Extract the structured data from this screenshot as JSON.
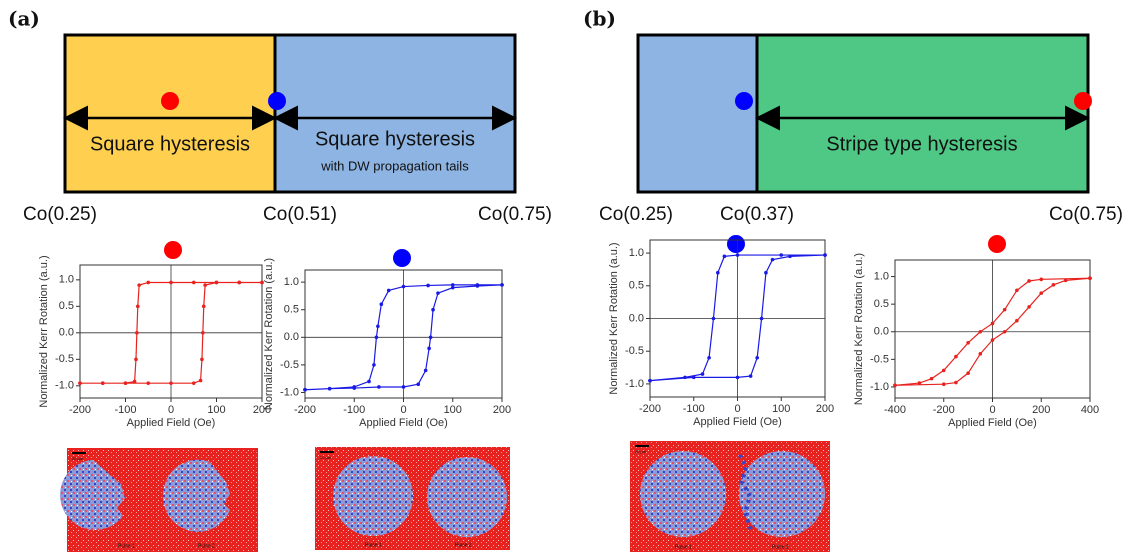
{
  "panels": [
    {
      "label": "(a)",
      "regions": [
        "Square hysteresis",
        "Square hysteresis"
      ],
      "subnote": "with DW propagation tails",
      "compositions": [
        "Co(0.25)",
        "Co(0.51)",
        "Co(0.75)"
      ]
    },
    {
      "label": "(b)",
      "regions": [
        "Stripe type hysteresis"
      ],
      "compositions": [
        "Co(0.25)",
        "Co(0.37)",
        "Co(0.75)"
      ]
    }
  ],
  "images": [
    {
      "scale": "20 µm",
      "pulses": [
        "Pulse 1",
        "Pulse 2"
      ]
    },
    {
      "scale": "20 µm",
      "pulses": [
        "Pulse 1",
        "Pulse 2"
      ]
    },
    {
      "scale": "20 µm",
      "pulses": [
        "Pulse 1",
        "Pulse 2"
      ]
    }
  ],
  "chart_data": [
    {
      "type": "line",
      "x_label": "Applied Field (Oe)",
      "y_label": "Normalized Kerr Rotation (a.u.)",
      "xlim": [
        -200,
        200
      ],
      "ylim": [
        -1.23,
        1.28
      ],
      "xticks": [
        -200,
        -100,
        0,
        100,
        200
      ],
      "yticks": [
        {
          "value": -1,
          "label": "-1.0"
        },
        {
          "value": -0.5,
          "label": "-0.5"
        },
        {
          "value": 0,
          "label": "0.0"
        },
        {
          "value": 0.5,
          "label": "0.5"
        },
        {
          "value": 1,
          "label": "1.0"
        }
      ],
      "x": [
        200,
        150,
        100,
        50,
        0,
        -50,
        -70,
        -73,
        -75,
        -77,
        -80,
        -100,
        -150,
        -200,
        -200,
        -150,
        -100,
        -50,
        0,
        50,
        65,
        68,
        70,
        72,
        75,
        100,
        150,
        200
      ],
      "series": [
        {
          "color": "#e8231f",
          "values": [
            0.95,
            0.95,
            0.95,
            0.95,
            0.95,
            0.95,
            0.9,
            0.5,
            0,
            -0.5,
            -0.92,
            -0.95,
            -0.95,
            -0.95,
            -0.95,
            -0.95,
            -0.95,
            -0.95,
            -0.95,
            -0.95,
            -0.9,
            -0.5,
            0,
            0.5,
            0.9,
            0.95,
            0.95,
            0.95
          ]
        }
      ]
    },
    {
      "type": "line",
      "x_label": "Applied Field (Oe)",
      "y_label": "Normalized Kerr Rotation (a.u.)",
      "xlim": [
        -200,
        200
      ],
      "ylim": [
        -1.1,
        1.22
      ],
      "xticks": [
        -200,
        -100,
        0,
        100,
        200
      ],
      "yticks": [
        {
          "value": -1,
          "label": "-1.0"
        },
        {
          "value": -0.5,
          "label": "-0.5"
        },
        {
          "value": 0,
          "label": "0.0"
        },
        {
          "value": 0.5,
          "label": "0.5"
        },
        {
          "value": 1,
          "label": "1.0"
        }
      ],
      "x": [
        200,
        150,
        100,
        50,
        0,
        -30,
        -45,
        -52,
        -55,
        -60,
        -70,
        -100,
        -150,
        -200,
        -200,
        -150,
        -100,
        -50,
        0,
        30,
        45,
        52,
        55,
        60,
        70,
        100,
        150,
        200
      ],
      "series": [
        {
          "color": "#1a1ae6",
          "values": [
            0.95,
            0.95,
            0.95,
            0.94,
            0.92,
            0.85,
            0.6,
            0.2,
            0,
            -0.5,
            -0.8,
            -0.9,
            -0.93,
            -0.95,
            -0.95,
            -0.93,
            -0.92,
            -0.9,
            -0.9,
            -0.85,
            -0.6,
            -0.2,
            0,
            0.5,
            0.8,
            0.9,
            0.93,
            0.95
          ]
        }
      ]
    },
    {
      "type": "line",
      "x_label": "Applied Field (Oe)",
      "y_label": "Normalized Kerr Rotation (a.u.)",
      "xlim": [
        -200,
        200
      ],
      "ylim": [
        -1.2,
        1.2
      ],
      "xticks": [
        -200,
        -100,
        0,
        100,
        200
      ],
      "yticks": [
        {
          "value": -1,
          "label": "-1.0"
        },
        {
          "value": -0.5,
          "label": "-0.5"
        },
        {
          "value": 0,
          "label": "0.0"
        },
        {
          "value": 0.5,
          "label": "0.5"
        },
        {
          "value": 1,
          "label": "1.0"
        }
      ],
      "x": [
        200,
        100,
        0,
        -30,
        -45,
        -55,
        -65,
        -80,
        -120,
        -200,
        -200,
        -100,
        0,
        30,
        45,
        55,
        65,
        80,
        120,
        200
      ],
      "series": [
        {
          "color": "#1a1ae6",
          "values": [
            0.97,
            0.97,
            0.97,
            0.95,
            0.7,
            0,
            -0.6,
            -0.85,
            -0.9,
            -0.95,
            -0.95,
            -0.9,
            -0.9,
            -0.88,
            -0.6,
            0,
            0.7,
            0.9,
            0.95,
            0.97
          ]
        }
      ]
    },
    {
      "type": "line",
      "x_label": "Applied Field (Oe)",
      "y_label": "Normalized Kerr Rotation (a.u.)",
      "xlim": [
        -400,
        400
      ],
      "ylim": [
        -1.2,
        1.3
      ],
      "xticks": [
        -400,
        -200,
        0,
        200,
        400
      ],
      "yticks": [
        {
          "value": -1,
          "label": "-1.0"
        },
        {
          "value": -0.5,
          "label": "-0.5"
        },
        {
          "value": 0,
          "label": "0.0"
        },
        {
          "value": 0.5,
          "label": "0.5"
        },
        {
          "value": 1,
          "label": "1.0"
        }
      ],
      "x": [
        400,
        200,
        150,
        100,
        50,
        0,
        -50,
        -100,
        -150,
        -200,
        -250,
        -300,
        -400,
        -400,
        -200,
        -150,
        -100,
        -50,
        0,
        50,
        100,
        150,
        200,
        250,
        300,
        400
      ],
      "series": [
        {
          "color": "#e8231f",
          "values": [
            0.97,
            0.95,
            0.92,
            0.75,
            0.4,
            0.15,
            0,
            -0.2,
            -0.45,
            -0.7,
            -0.85,
            -0.93,
            -0.97,
            -0.97,
            -0.95,
            -0.92,
            -0.75,
            -0.4,
            -0.15,
            0,
            0.2,
            0.45,
            0.7,
            0.85,
            0.93,
            0.97
          ]
        }
      ]
    }
  ]
}
